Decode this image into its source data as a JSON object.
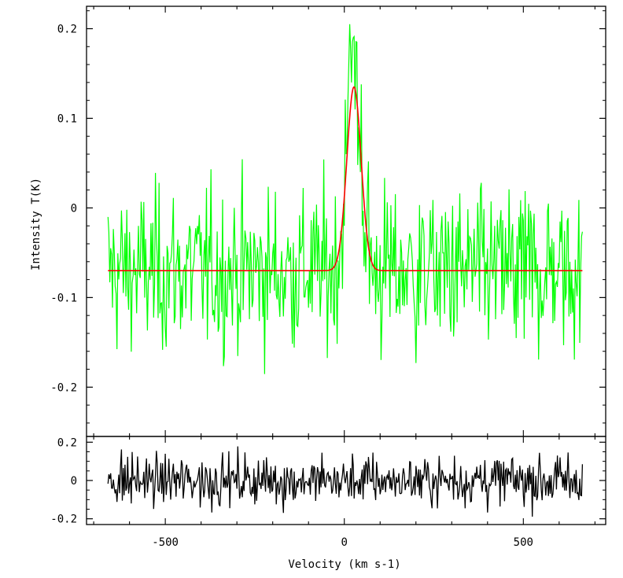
{
  "chart_data": [
    {
      "panel": "main",
      "type": "line",
      "title": "",
      "xlabel": "",
      "ylabel": "Intensity T(K)",
      "xlim": [
        -720,
        730
      ],
      "ylim": [
        -0.255,
        0.225
      ],
      "yticks": [
        -0.2,
        -0.1,
        0,
        0.1,
        0.2
      ],
      "ytick_labels": [
        "-0.2",
        "-0.1",
        "0",
        "0.1",
        "0.2"
      ],
      "xticks": [
        -500,
        0,
        500
      ],
      "grid": false,
      "series": [
        {
          "role": "observed spectrum",
          "color": "#00ff00",
          "x_range": [
            -660,
            665
          ],
          "baseline": -0.07,
          "noise_rms": 0.045,
          "peak_samples": [
            [
              0,
              -0.02
            ],
            [
              5,
              0.06
            ],
            [
              10,
              0.12
            ],
            [
              15,
              0.205
            ],
            [
              20,
              0.14
            ],
            [
              25,
              0.19
            ],
            [
              30,
              0.11
            ],
            [
              35,
              0.185
            ],
            [
              40,
              0.09
            ],
            [
              45,
              0.04
            ],
            [
              50,
              -0.02
            ]
          ]
        },
        {
          "role": "gaussian fit",
          "color": "#ff0000",
          "x_range": [
            -660,
            665
          ],
          "baseline": -0.07,
          "amplitude": 0.205,
          "center": 27,
          "sigma": 20
        }
      ]
    },
    {
      "panel": "residuals",
      "type": "line",
      "xlabel": "Velocity (km s-1)",
      "ylabel": "",
      "xlim": [
        -720,
        730
      ],
      "ylim": [
        -0.23,
        0.23
      ],
      "yticks": [
        -0.2,
        0,
        0.2
      ],
      "ytick_labels": [
        "-0.2",
        "0",
        "0.2"
      ],
      "xticks": [
        -500,
        0,
        500
      ],
      "xtick_labels": [
        "-500",
        "0",
        "500"
      ],
      "series": [
        {
          "role": "residual",
          "color": "#000000",
          "x_range": [
            -660,
            665
          ],
          "noise_rms": 0.065
        }
      ]
    }
  ]
}
